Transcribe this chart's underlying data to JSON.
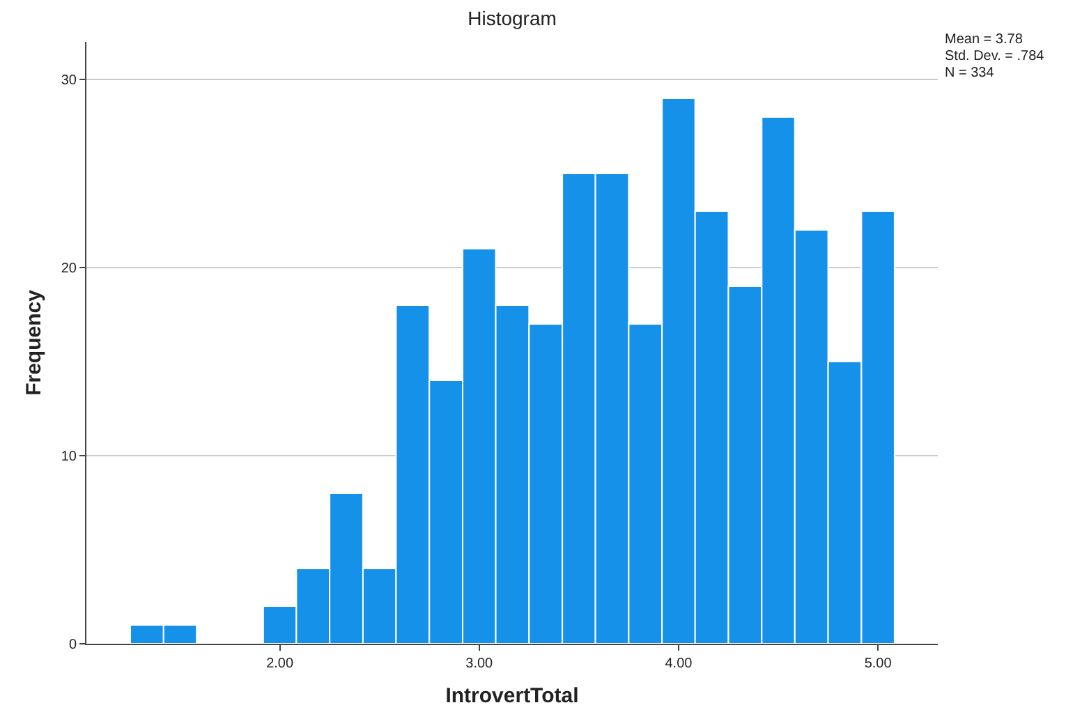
{
  "chart_data": {
    "type": "histogram",
    "title": "Histogram",
    "xlabel": "IntrovertTotal",
    "ylabel": "Frequency",
    "bins": [
      1.25,
      1.417,
      1.583,
      1.75,
      1.917,
      2.083,
      2.25,
      2.417,
      2.583,
      2.75,
      2.917,
      3.083,
      3.25,
      3.417,
      3.583,
      3.75,
      3.917,
      4.083,
      4.25,
      4.417,
      4.583,
      4.75,
      4.917,
      5.083
    ],
    "values": [
      1,
      1,
      0,
      0,
      2,
      4,
      8,
      4,
      18,
      14,
      21,
      18,
      17,
      25,
      25,
      17,
      29,
      23,
      19,
      28,
      22,
      15,
      23
    ],
    "color": "#1591ea",
    "xlim": [
      1.03,
      5.3
    ],
    "xticks": [
      {
        "value": 2,
        "label": "2.00"
      },
      {
        "value": 3,
        "label": "3.00"
      },
      {
        "value": 4,
        "label": "4.00"
      },
      {
        "value": 5,
        "label": "5.00"
      }
    ],
    "ylim": [
      0,
      32
    ],
    "yticks": [
      0,
      10,
      20,
      30
    ],
    "grid": "y",
    "legend": false,
    "annotations": [
      "Mean = 3.78",
      "Std. Dev. = .784",
      "N = 334"
    ]
  }
}
